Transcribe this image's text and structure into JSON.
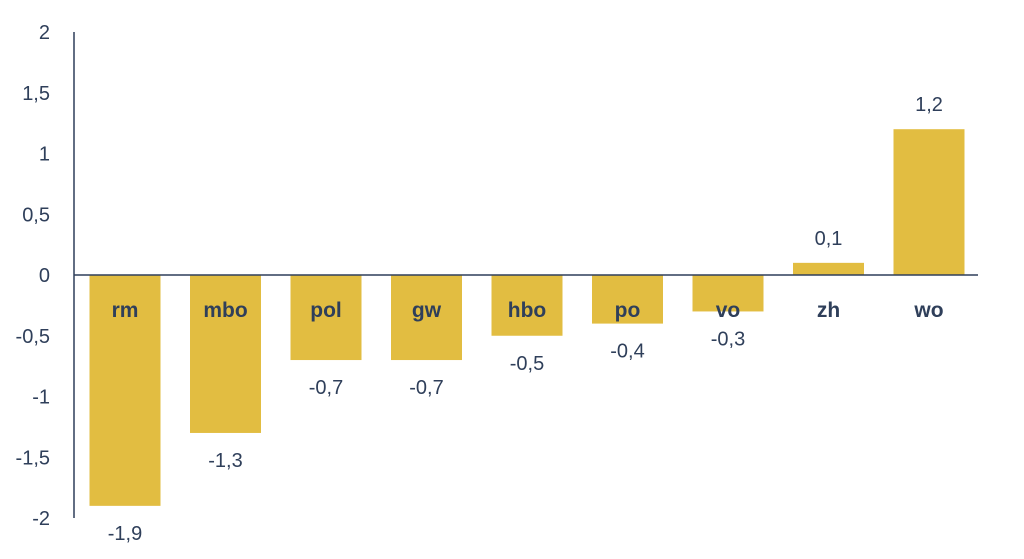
{
  "chart_data": {
    "type": "bar",
    "title": "",
    "xlabel": "",
    "ylabel": "",
    "categories": [
      "rm",
      "mbo",
      "pol",
      "gw",
      "hbo",
      "po",
      "vo",
      "zh",
      "wo"
    ],
    "values": [
      -1.9,
      -1.3,
      -0.7,
      -0.7,
      -0.5,
      -0.4,
      -0.3,
      0.1,
      1.2
    ],
    "value_labels": [
      "-1,9",
      "-1,3",
      "-0,7",
      "-0,7",
      "-0,5",
      "-0,4",
      "-0,3",
      "0,1",
      "1,2"
    ],
    "ylim": [
      -2,
      2
    ],
    "yticks": [
      2,
      1.5,
      1,
      0.5,
      0,
      -0.5,
      -1,
      -1.5,
      -2
    ],
    "ytick_labels": [
      "2",
      "1,5",
      "1",
      "0,5",
      "0",
      "-0,5",
      "-1",
      "-1,5",
      "-2"
    ],
    "grid": false,
    "legend": "none",
    "colors": {
      "bar": "#e2bd41",
      "text": "#2f3f5a",
      "axis": "#2f3f5a"
    }
  }
}
